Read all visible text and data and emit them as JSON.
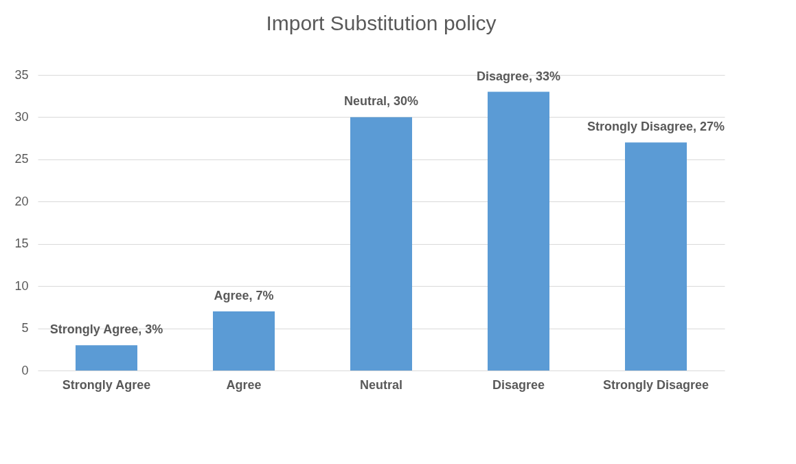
{
  "chart_data": {
    "type": "bar",
    "title": "Import Substitution policy",
    "categories": [
      "Strongly Agree",
      "Agree",
      "Neutral",
      "Disagree",
      "Strongly Disagree"
    ],
    "values": [
      3,
      7,
      30,
      33,
      27
    ],
    "color": "#5b9bd5",
    "value_labels": [
      "Strongly Agree, 3%",
      "Agree, 7%",
      "Neutral, 30%",
      "Disagree, 33%",
      "Strongly Disagree, 27%"
    ],
    "ylim": [
      0,
      35
    ],
    "yticks": [
      0,
      5,
      10,
      15,
      20,
      25,
      30,
      35
    ],
    "grid": "y"
  }
}
